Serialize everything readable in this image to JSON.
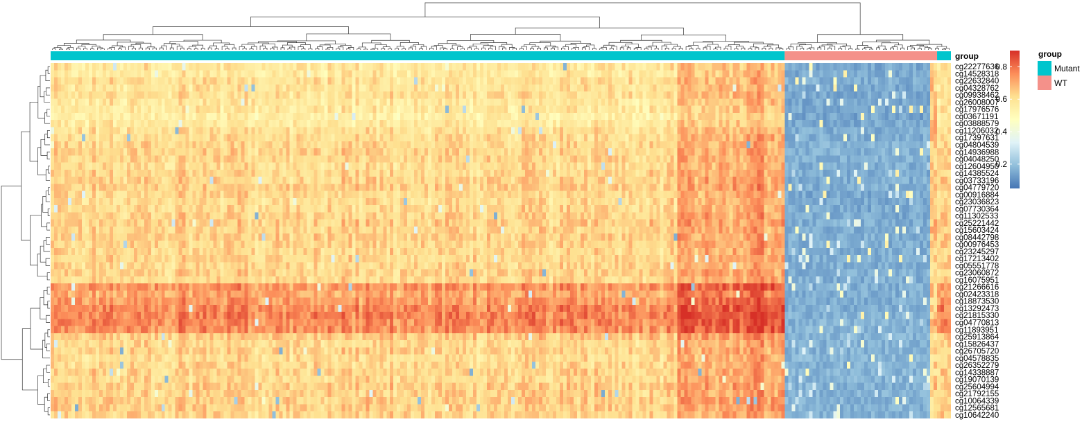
{
  "chart_data": {
    "type": "heatmap",
    "title": "",
    "xlabel": "",
    "ylabel": "",
    "n_columns": 260,
    "column_groups": [
      {
        "group": "Mutant",
        "count": 212
      },
      {
        "group": "WT",
        "count": 44
      },
      {
        "group": "Mutant",
        "count": 4
      }
    ],
    "rows": [
      {
        "label": "cg22277636",
        "mutant_mean": 0.58,
        "wt_mean": 0.15
      },
      {
        "label": "cg14528318",
        "mutant_mean": 0.57,
        "wt_mean": 0.15
      },
      {
        "label": "cg22632840",
        "mutant_mean": 0.6,
        "wt_mean": 0.16
      },
      {
        "label": "cg04328762",
        "mutant_mean": 0.59,
        "wt_mean": 0.15
      },
      {
        "label": "cg09938462",
        "mutant_mean": 0.6,
        "wt_mean": 0.15
      },
      {
        "label": "cg26008007",
        "mutant_mean": 0.58,
        "wt_mean": 0.15
      },
      {
        "label": "cg17976576",
        "mutant_mean": 0.57,
        "wt_mean": 0.15
      },
      {
        "label": "cg03671191",
        "mutant_mean": 0.55,
        "wt_mean": 0.14
      },
      {
        "label": "cg03888579",
        "mutant_mean": 0.57,
        "wt_mean": 0.15
      },
      {
        "label": "cg11206032",
        "mutant_mean": 0.6,
        "wt_mean": 0.16
      },
      {
        "label": "cg17397631",
        "mutant_mean": 0.61,
        "wt_mean": 0.16
      },
      {
        "label": "cg04804539",
        "mutant_mean": 0.62,
        "wt_mean": 0.17
      },
      {
        "label": "cg14936988",
        "mutant_mean": 0.63,
        "wt_mean": 0.17
      },
      {
        "label": "cg04048250",
        "mutant_mean": 0.62,
        "wt_mean": 0.17
      },
      {
        "label": "cg12604950",
        "mutant_mean": 0.61,
        "wt_mean": 0.16
      },
      {
        "label": "cg14385524",
        "mutant_mean": 0.62,
        "wt_mean": 0.16
      },
      {
        "label": "cg03733196",
        "mutant_mean": 0.63,
        "wt_mean": 0.16
      },
      {
        "label": "cg04779720",
        "mutant_mean": 0.64,
        "wt_mean": 0.16
      },
      {
        "label": "cg00916884",
        "mutant_mean": 0.62,
        "wt_mean": 0.15
      },
      {
        "label": "cg23036823",
        "mutant_mean": 0.61,
        "wt_mean": 0.15
      },
      {
        "label": "cg07730364",
        "mutant_mean": 0.62,
        "wt_mean": 0.15
      },
      {
        "label": "cg11302533",
        "mutant_mean": 0.63,
        "wt_mean": 0.15
      },
      {
        "label": "cg25221442",
        "mutant_mean": 0.64,
        "wt_mean": 0.16
      },
      {
        "label": "cg15603424",
        "mutant_mean": 0.63,
        "wt_mean": 0.16
      },
      {
        "label": "cg08442798",
        "mutant_mean": 0.64,
        "wt_mean": 0.16
      },
      {
        "label": "cg00976453",
        "mutant_mean": 0.63,
        "wt_mean": 0.16
      },
      {
        "label": "cg23245297",
        "mutant_mean": 0.62,
        "wt_mean": 0.16
      },
      {
        "label": "cg17213402",
        "mutant_mean": 0.63,
        "wt_mean": 0.16
      },
      {
        "label": "cg05551778",
        "mutant_mean": 0.62,
        "wt_mean": 0.16
      },
      {
        "label": "cg23060872",
        "mutant_mean": 0.63,
        "wt_mean": 0.16
      },
      {
        "label": "cg16075951",
        "mutant_mean": 0.62,
        "wt_mean": 0.16
      },
      {
        "label": "cg21266616",
        "mutant_mean": 0.74,
        "wt_mean": 0.16
      },
      {
        "label": "cg02423318",
        "mutant_mean": 0.71,
        "wt_mean": 0.16
      },
      {
        "label": "cg18873530",
        "mutant_mean": 0.73,
        "wt_mean": 0.16
      },
      {
        "label": "cg13292473",
        "mutant_mean": 0.76,
        "wt_mean": 0.16
      },
      {
        "label": "cg21815330",
        "mutant_mean": 0.77,
        "wt_mean": 0.17
      },
      {
        "label": "cg04770813",
        "mutant_mean": 0.76,
        "wt_mean": 0.17
      },
      {
        "label": "cg11893951",
        "mutant_mean": 0.75,
        "wt_mean": 0.17
      },
      {
        "label": "cg25913864",
        "mutant_mean": 0.65,
        "wt_mean": 0.17
      },
      {
        "label": "cg15826437",
        "mutant_mean": 0.62,
        "wt_mean": 0.17
      },
      {
        "label": "cg26705720",
        "mutant_mean": 0.63,
        "wt_mean": 0.17
      },
      {
        "label": "cg04578835",
        "mutant_mean": 0.61,
        "wt_mean": 0.18
      },
      {
        "label": "cg26352279",
        "mutant_mean": 0.62,
        "wt_mean": 0.17
      },
      {
        "label": "cg14338887",
        "mutant_mean": 0.63,
        "wt_mean": 0.17
      },
      {
        "label": "cg19070139",
        "mutant_mean": 0.62,
        "wt_mean": 0.17
      },
      {
        "label": "cg25604994",
        "mutant_mean": 0.64,
        "wt_mean": 0.17
      },
      {
        "label": "cg21792155",
        "mutant_mean": 0.63,
        "wt_mean": 0.17
      },
      {
        "label": "cg10064339",
        "mutant_mean": 0.64,
        "wt_mean": 0.17
      },
      {
        "label": "cg12565681",
        "mutant_mean": 0.64,
        "wt_mean": 0.17
      },
      {
        "label": "cg10642240",
        "mutant_mean": 0.63,
        "wt_mean": 0.17
      }
    ],
    "annotation": {
      "label": "group",
      "legend_title": "group",
      "levels": [
        {
          "name": "Mutant",
          "color": "#00C5CD"
        },
        {
          "name": "WT",
          "color": "#F4918A"
        }
      ]
    },
    "colorbar": {
      "range": [
        0.05,
        0.9
      ],
      "ticks": [
        0.2,
        0.4,
        0.6,
        0.8
      ],
      "tick_labels": [
        "0.2",
        "0.4",
        "0.6",
        "0.8"
      ],
      "colors": [
        "#4575B4",
        "#91BFDB",
        "#E0F3F8",
        "#FFFFBF",
        "#FEE090",
        "#FC8D59",
        "#D73027"
      ]
    },
    "row_dendrogram": true,
    "column_dendrogram": true,
    "legend_position": "right"
  }
}
